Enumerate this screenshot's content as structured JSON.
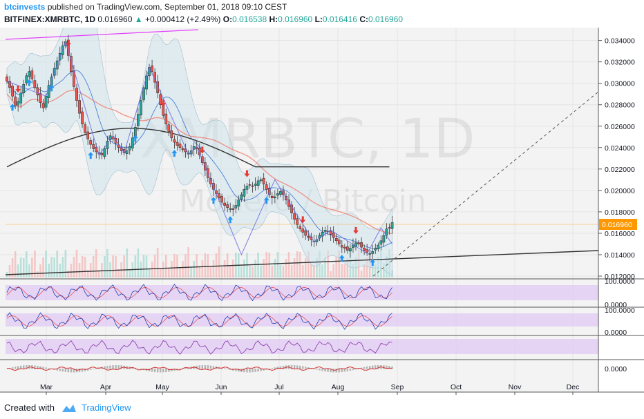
{
  "header": {
    "author": "btcinvests",
    "published_text": "published on TradingView.com, September 01, 2018 09:10 CEST",
    "symbol": "BITFINEX:XMRBTC, 1D",
    "last": "0.016960",
    "change": "+0.000412 (+2.49%)",
    "o_label": "O:",
    "o": "0.016538",
    "h_label": "H:",
    "h": "0.016960",
    "l_label": "L:",
    "l": "0.016416",
    "c_label": "C:",
    "c": "0.016960"
  },
  "watermark": {
    "line1": "XMRBTC, 1D",
    "line2": "Monero / Bitcoin"
  },
  "footer": {
    "created_with": "Created with",
    "brand": "TradingView"
  },
  "colors": {
    "up_candle": "#26a69a",
    "down_candle": "#ef5350",
    "bollinger_fill": "#cfe3ec",
    "price_label_bg": "#ff9800",
    "rsi_band": "#e1c9f5",
    "zigzag": "#6c6ce0",
    "ma_red": "#f08070",
    "ma_black": "#333333",
    "buy_arrow": "#2196f3",
    "sell_arrow": "#e53935"
  },
  "chart_data": {
    "type": "candlestick",
    "price_axis": {
      "ticks": [
        "0.034000",
        "0.032000",
        "0.030000",
        "0.028000",
        "0.026000",
        "0.024000",
        "0.022000",
        "0.020000",
        "0.018000",
        "0.016000",
        "0.014000",
        "0.012000"
      ],
      "range": [
        0.012,
        0.0352
      ],
      "current_price_label": "0.016960"
    },
    "time_axis": {
      "labels": [
        "Mar",
        "Apr",
        "May",
        "Jun",
        "Jul",
        "Aug",
        "Sep",
        "Oct",
        "Nov",
        "Dec"
      ]
    },
    "close_series": [
      0.0302,
      0.0296,
      0.0288,
      0.0279,
      0.0283,
      0.0291,
      0.0299,
      0.0307,
      0.0311,
      0.0304,
      0.0296,
      0.0289,
      0.0282,
      0.0277,
      0.0288,
      0.0298,
      0.0306,
      0.0314,
      0.0321,
      0.0328,
      0.0335,
      0.0339,
      0.0326,
      0.0311,
      0.0297,
      0.0284,
      0.0272,
      0.0262,
      0.0254,
      0.0248,
      0.0243,
      0.0239,
      0.0236,
      0.0234,
      0.0233,
      0.0239,
      0.0246,
      0.0251,
      0.0248,
      0.0244,
      0.024,
      0.0237,
      0.0235,
      0.0237,
      0.0241,
      0.0249,
      0.0259,
      0.0271,
      0.0284,
      0.0296,
      0.0307,
      0.0315,
      0.0311,
      0.0301,
      0.0291,
      0.028,
      0.027,
      0.0262,
      0.0255,
      0.0249,
      0.0245,
      0.0242,
      0.024,
      0.0238,
      0.0236,
      0.0234,
      0.0237,
      0.0241,
      0.0239,
      0.0233,
      0.0226,
      0.0219,
      0.0212,
      0.0206,
      0.0201,
      0.0197,
      0.0193,
      0.0189,
      0.0186,
      0.0184,
      0.0183,
      0.0182,
      0.0186,
      0.0191,
      0.0196,
      0.0201,
      0.0204,
      0.0205,
      0.0204,
      0.0206,
      0.0209,
      0.021,
      0.0206,
      0.0201,
      0.0196,
      0.0193,
      0.0194,
      0.0197,
      0.0199,
      0.0196,
      0.0191,
      0.0185,
      0.0179,
      0.0173,
      0.0168,
      0.0164,
      0.0161,
      0.0158,
      0.0156,
      0.0154,
      0.0152,
      0.0154,
      0.0158,
      0.0161,
      0.0163,
      0.0162,
      0.0159,
      0.0156,
      0.0153,
      0.015,
      0.0147,
      0.0146,
      0.0144,
      0.0146,
      0.0149,
      0.0151,
      0.015,
      0.0147,
      0.0144,
      0.0142,
      0.0141,
      0.0143,
      0.0146,
      0.0149,
      0.0153,
      0.0158,
      0.0164,
      0.0165,
      0.017
    ]
  }
}
